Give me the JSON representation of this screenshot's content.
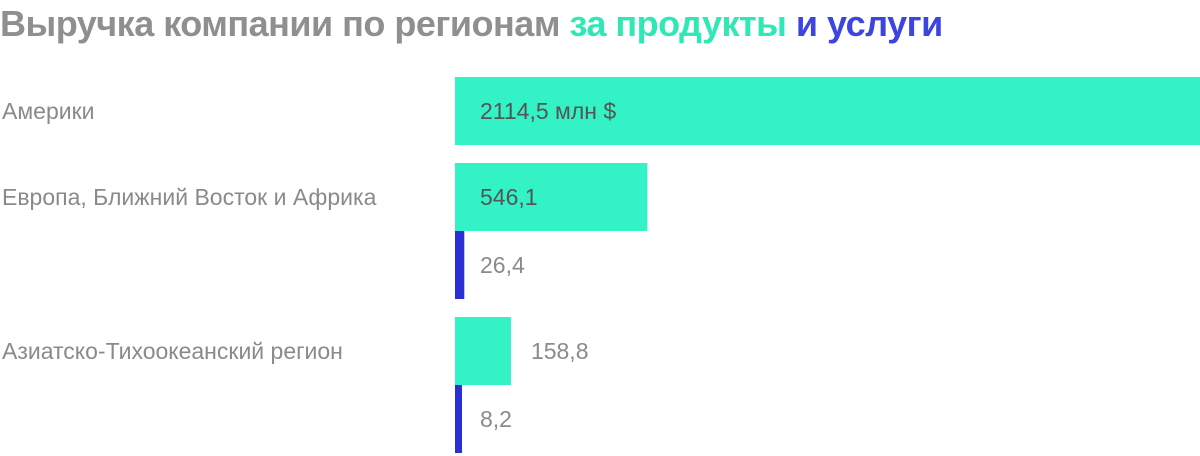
{
  "title": {
    "main": "Выручка компании по регионам",
    "products": "за продукты",
    "connector": "и",
    "services": "услуги"
  },
  "colors": {
    "products": "#33f2c6",
    "services": "#2b2fd6",
    "category_text": "#8a8a8a",
    "label_inside": "#555555",
    "label_outside": "#8a8a8a"
  },
  "chart_data": {
    "type": "bar",
    "orientation": "horizontal",
    "title": "Выручка компании по регионам за продукты и услуги",
    "categories": [
      "Америки",
      "Европа, Ближний Восток и Африка",
      "Азиатско-Тихоокеанский регион"
    ],
    "series": [
      {
        "name": "за продукты",
        "values": [
          2114.5,
          546.1,
          158.8
        ],
        "labels": [
          "2114,5 млн $",
          "546,1",
          "158,8"
        ]
      },
      {
        "name": "услуги",
        "values": [
          null,
          26.4,
          8.2
        ],
        "labels": [
          "",
          "26,4",
          "8,2"
        ]
      }
    ],
    "xlim": [
      0,
      2114.5
    ],
    "grid": false,
    "legend": "title"
  }
}
